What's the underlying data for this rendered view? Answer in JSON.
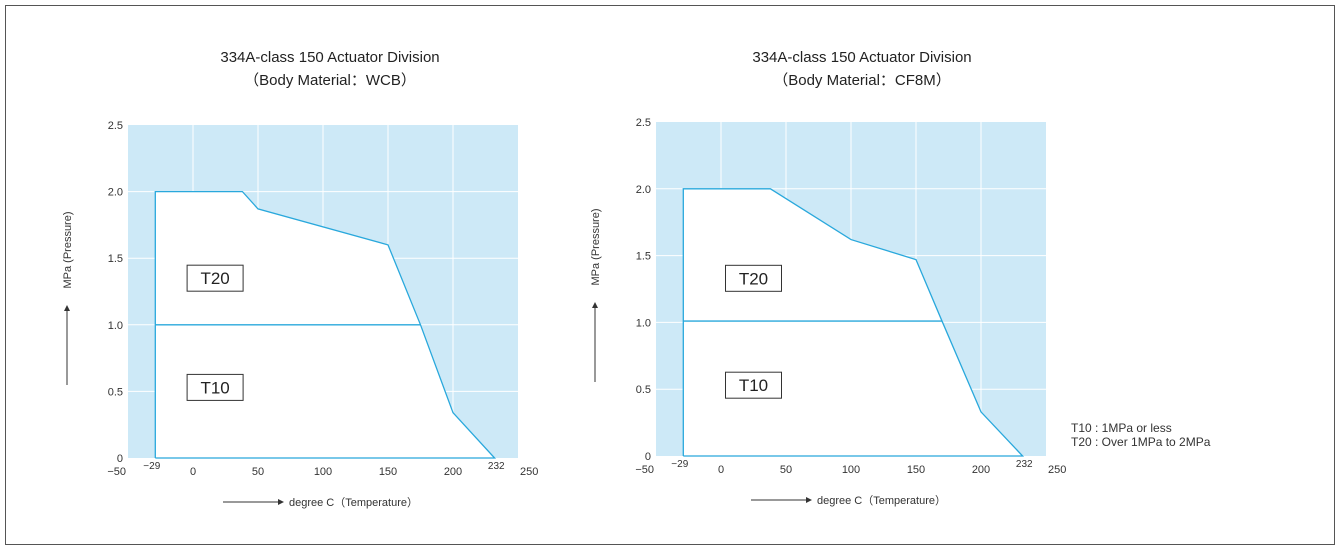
{
  "chart_data": [
    {
      "type": "area",
      "title": "334A-class 150  Actuator Division",
      "subtitle": "（Body Material：WCB）",
      "xlabel": "degree C（Temperature）",
      "ylabel": "MPa (Pressure)",
      "xlim": [
        -50,
        250
      ],
      "ylim": [
        0,
        2.5
      ],
      "x_ticks": [
        -50,
        0,
        50,
        100,
        150,
        200,
        250
      ],
      "y_ticks": [
        "0",
        "0.5",
        "1.0",
        "1.5",
        "2.0",
        "2.5"
      ],
      "extra_x_labels": [
        {
          "value": -29,
          "label": "−29"
        },
        {
          "value": 232,
          "label": "232"
        }
      ],
      "grid": true,
      "background_color": "#cde9f7",
      "line_color": "#29a8dc",
      "boundary": {
        "x": [
          -29,
          -29,
          38,
          50,
          150,
          175,
          200,
          232
        ],
        "y": [
          0,
          2.0,
          2.0,
          1.87,
          1.6,
          1.0,
          0.34,
          0
        ]
      },
      "divider": {
        "x": [
          -29,
          175
        ],
        "y": [
          1.0,
          1.0
        ]
      },
      "region_labels": [
        {
          "text": "T20",
          "x": 17,
          "y": 1.35
        },
        {
          "text": "T10",
          "x": 17,
          "y": 0.53
        }
      ]
    },
    {
      "type": "area",
      "title": "334A-class 150  Actuator Division",
      "subtitle": "（Body Material：CF8M）",
      "xlabel": "degree C（Temperature）",
      "ylabel": "MPa (Pressure)",
      "xlim": [
        -50,
        250
      ],
      "ylim": [
        0,
        2.5
      ],
      "x_ticks": [
        -50,
        0,
        50,
        100,
        150,
        200,
        250
      ],
      "y_ticks": [
        "0",
        "0.5",
        "1.0",
        "1.5",
        "2.0",
        "2.5"
      ],
      "extra_x_labels": [
        {
          "value": -29,
          "label": "−29"
        },
        {
          "value": 232,
          "label": "232"
        }
      ],
      "grid": true,
      "background_color": "#cde9f7",
      "line_color": "#29a8dc",
      "boundary": {
        "x": [
          -29,
          -29,
          38,
          100,
          150,
          170,
          200,
          232
        ],
        "y": [
          0,
          2.0,
          2.0,
          1.62,
          1.47,
          1.01,
          0.33,
          0
        ]
      },
      "divider": {
        "x": [
          -29,
          170
        ],
        "y": [
          1.01,
          1.01
        ]
      },
      "region_labels": [
        {
          "text": "T20",
          "x": 25,
          "y": 1.33
        },
        {
          "text": "T10",
          "x": 25,
          "y": 0.53
        }
      ]
    }
  ],
  "titles": [
    {
      "line1": "334A-class 150  Actuator Division",
      "line2": "（Body Material：WCB）"
    },
    {
      "line1": "334A-class 150  Actuator Division",
      "line2": "（Body Material：CF8M）"
    }
  ],
  "note": {
    "t10": "T10 : 1MPa or less",
    "t20": "T20 : Over 1MPa to 2MPa"
  }
}
